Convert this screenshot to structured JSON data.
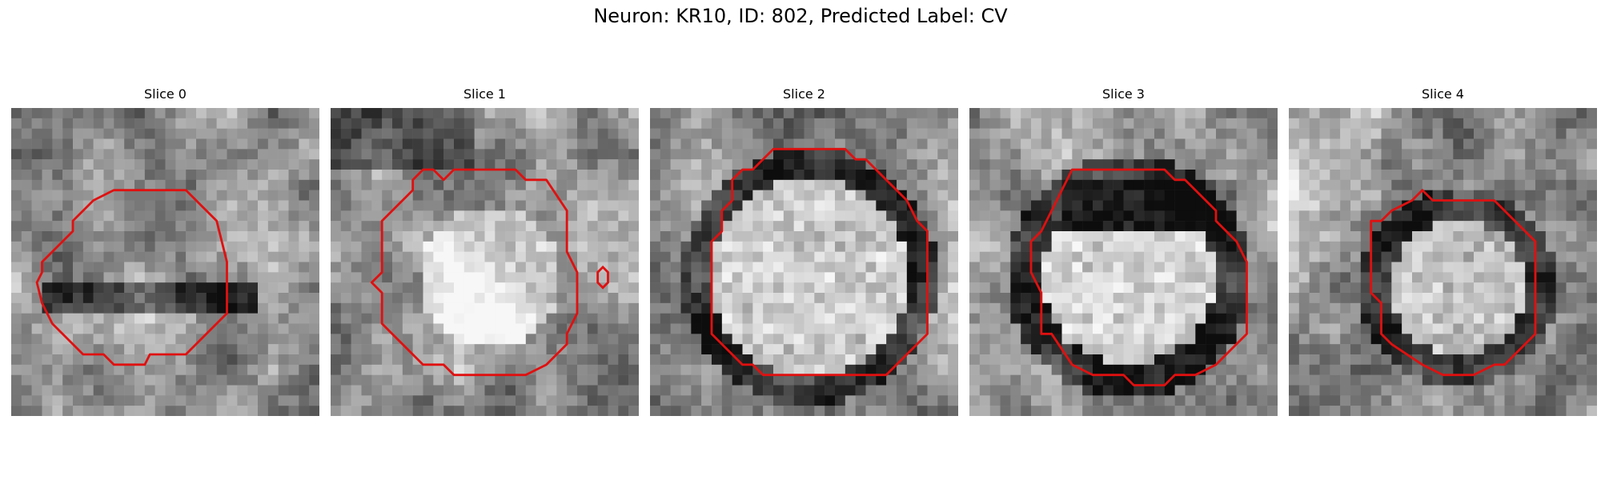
{
  "figure": {
    "title": "Neuron: KR10, ID: 802, Predicted Label: CV"
  },
  "colors": {
    "contour": "#e01010",
    "background": "#ffffff"
  },
  "panels": [
    {
      "title": "Slice 0"
    },
    {
      "title": "Slice 1"
    },
    {
      "title": "Slice 2"
    },
    {
      "title": "Slice 3"
    },
    {
      "title": "Slice 4"
    }
  ]
}
